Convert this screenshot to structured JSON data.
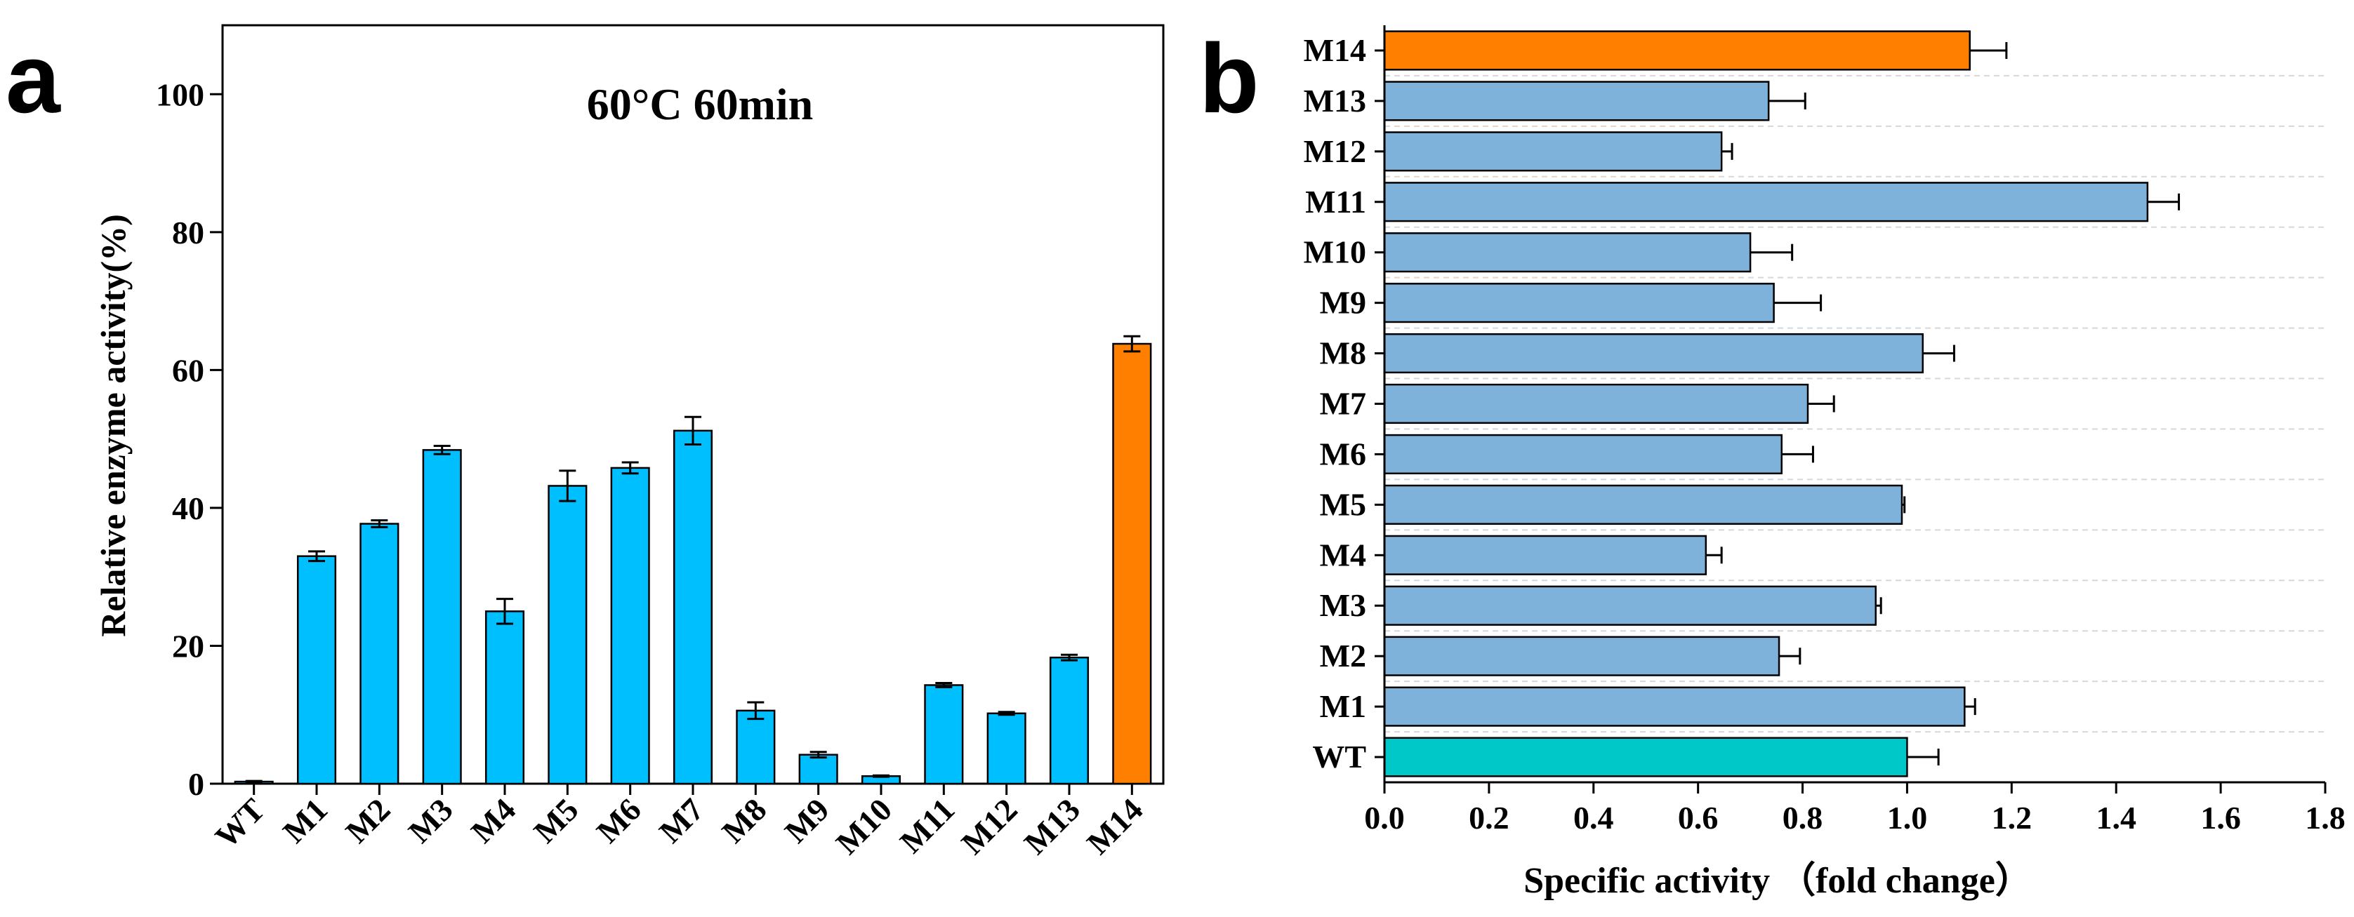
{
  "chart_data": [
    {
      "type": "bar",
      "orientation": "vertical",
      "panel_label": "a",
      "title": "60°C 60min",
      "ylabel": "Relative enzyme activity(%)",
      "categories": [
        "WT",
        "M1",
        "M2",
        "M3",
        "M4",
        "M5",
        "M6",
        "M7",
        "M8",
        "M9",
        "M10",
        "M11",
        "M12",
        "M13",
        "M14"
      ],
      "values": [
        0.3,
        33,
        37.7,
        48.4,
        25,
        43.2,
        45.8,
        51.2,
        10.6,
        4.2,
        1.1,
        14.3,
        10.2,
        18.3,
        63.8
      ],
      "errors": [
        0.1,
        0.7,
        0.5,
        0.6,
        1.8,
        2.2,
        0.8,
        2,
        1.2,
        0.4,
        0.1,
        0.3,
        0.2,
        0.4,
        1.1
      ],
      "colors": [
        "#00bfff",
        "#00bfff",
        "#00bfff",
        "#00bfff",
        "#00bfff",
        "#00bfff",
        "#00bfff",
        "#00bfff",
        "#00bfff",
        "#00bfff",
        "#00bfff",
        "#00bfff",
        "#00bfff",
        "#00bfff",
        "#ff8000"
      ],
      "ylim": [
        0,
        110
      ],
      "yticks": [
        0,
        20,
        40,
        60,
        80,
        100
      ],
      "grid": false
    },
    {
      "type": "bar",
      "orientation": "horizontal",
      "panel_label": "b",
      "xlabel": "Specific activity （fold change）",
      "categories": [
        "WT",
        "M1",
        "M2",
        "M3",
        "M4",
        "M5",
        "M6",
        "M7",
        "M8",
        "M9",
        "M10",
        "M11",
        "M12",
        "M13",
        "M14"
      ],
      "values": [
        1.0,
        1.11,
        0.755,
        0.94,
        0.615,
        0.99,
        0.76,
        0.81,
        1.03,
        0.745,
        0.7,
        1.46,
        0.645,
        0.735,
        1.12
      ],
      "errors": [
        0.06,
        0.02,
        0.04,
        0.01,
        0.03,
        0.005,
        0.06,
        0.05,
        0.06,
        0.09,
        0.08,
        0.06,
        0.02,
        0.07,
        0.07
      ],
      "colors": [
        "#00c8c8",
        "#7fb2da",
        "#7fb2da",
        "#7fb2da",
        "#7fb2da",
        "#7fb2da",
        "#7fb2da",
        "#7fb2da",
        "#7fb2da",
        "#7fb2da",
        "#7fb2da",
        "#7fb2da",
        "#7fb2da",
        "#7fb2da",
        "#ff8000"
      ],
      "xlim": [
        0,
        1.8
      ],
      "xticks": [
        {
          "value": 0,
          "label": "0.0"
        },
        0.2,
        0.4,
        0.6,
        0.8,
        {
          "value": 1,
          "label": "1.0"
        },
        1.2,
        1.4,
        1.6,
        1.8
      ],
      "grid": true
    }
  ]
}
